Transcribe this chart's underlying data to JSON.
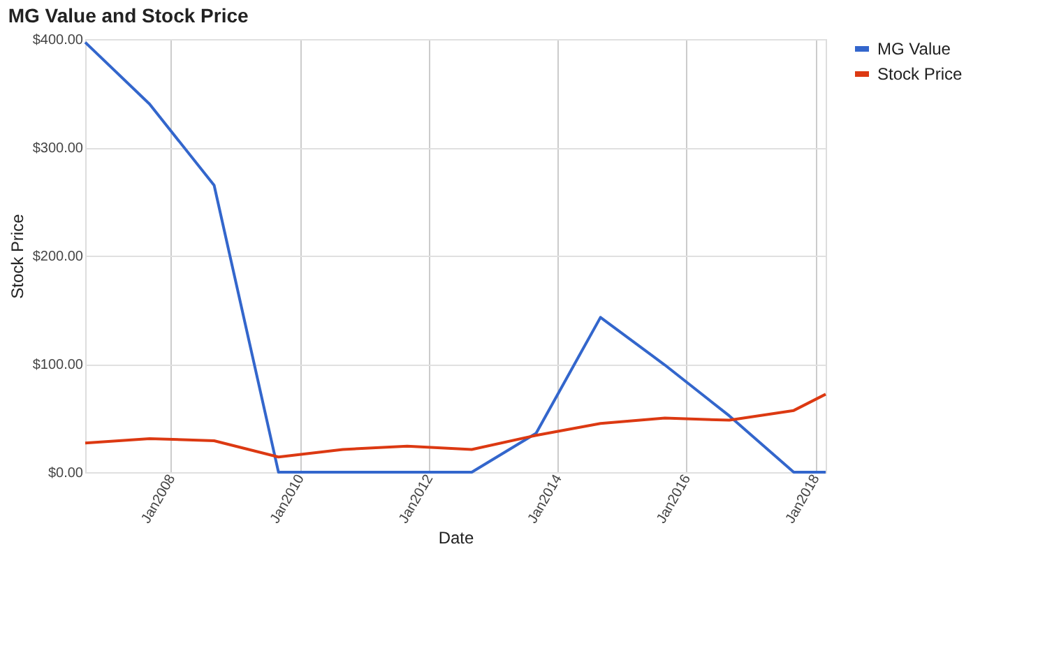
{
  "chart_data": {
    "type": "line",
    "title": "MG Value and Stock Price",
    "xlabel": "Date",
    "ylabel": "Stock Price",
    "x": [
      "2006-09",
      "2007-09",
      "2008-09",
      "2009-09",
      "2010-09",
      "2011-09",
      "2012-09",
      "2013-09",
      "2014-09",
      "2015-09",
      "2016-09",
      "2017-09",
      "2018-03"
    ],
    "series": [
      {
        "name": "MG Value",
        "color": "#3366cc",
        "values": [
          397,
          340,
          265,
          0,
          0,
          0,
          0,
          36,
          143,
          99,
          52,
          0,
          0
        ]
      },
      {
        "name": "Stock Price",
        "color": "#dc3912",
        "values": [
          27,
          31,
          29,
          14,
          21,
          24,
          21,
          34,
          45,
          50,
          48,
          57,
          72
        ]
      }
    ],
    "xlim": [
      "2006-09",
      "2018-03"
    ],
    "xticks": [
      {
        "value": "2008-01",
        "label": "Jan2008"
      },
      {
        "value": "2010-01",
        "label": "Jan2010"
      },
      {
        "value": "2012-01",
        "label": "Jan2012"
      },
      {
        "value": "2014-01",
        "label": "Jan2014"
      },
      {
        "value": "2016-01",
        "label": "Jan2016"
      },
      {
        "value": "2018-01",
        "label": "Jan2018"
      }
    ],
    "ylim": [
      0,
      400
    ],
    "yticks": [
      {
        "value": 0,
        "label": "$0.00"
      },
      {
        "value": 100,
        "label": "$100.00"
      },
      {
        "value": 200,
        "label": "$200.00"
      },
      {
        "value": 300,
        "label": "$300.00"
      },
      {
        "value": 400,
        "label": "$400.00"
      }
    ],
    "grid": true,
    "legend": "top right",
    "marker": "none",
    "line_style": "solid"
  }
}
